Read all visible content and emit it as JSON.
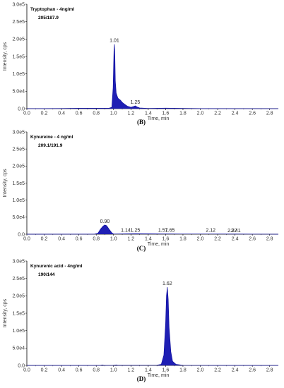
{
  "chart_data": [
    {
      "type": "area",
      "panel_label": "(B)",
      "title": "Tryptophan - 4ng/ml",
      "subtitle": "205/187.9",
      "xlabel": "Time, min",
      "ylabel": "Intensity, cps",
      "xlim": [
        0.0,
        2.9
      ],
      "ylim": [
        0,
        300000
      ],
      "x_ticks": [
        "0.0",
        "0.2",
        "0.4",
        "0.6",
        "0.8",
        "1.0",
        "1.2",
        "1.4",
        "1.6",
        "1.8",
        "2.0",
        "2.2",
        "2.4",
        "2.6",
        "2.8"
      ],
      "y_ticks": [
        "0.0",
        "5.0e4",
        "1.0e5",
        "1.5e5",
        "2.0e5",
        "2.5e5",
        "3.0e5"
      ],
      "series": [
        {
          "x": [
            0.0,
            0.4,
            0.6,
            0.95,
            0.98,
            0.995,
            1.005,
            1.01,
            1.015,
            1.02,
            1.03,
            1.05,
            1.08,
            1.1,
            1.13,
            1.16,
            1.2,
            1.23,
            1.25,
            1.27,
            1.3,
            1.4,
            1.6,
            2.0,
            2.9
          ],
          "y": [
            0,
            500,
            1200,
            1500,
            4000,
            60000,
            170000,
            185000,
            150000,
            80000,
            45000,
            30000,
            24000,
            18000,
            12000,
            7000,
            4000,
            6000,
            8000,
            5000,
            2000,
            800,
            1500,
            300,
            0
          ]
        }
      ],
      "peak_labels": [
        {
          "x": 1.01,
          "y": 185000,
          "label": "1.01"
        },
        {
          "x": 1.25,
          "y": 8000,
          "label": "1.25"
        }
      ]
    },
    {
      "type": "area",
      "panel_label": "(C)",
      "title": "Kynureine - 4 ng/ml",
      "subtitle": "209.1/191.9",
      "xlabel": "Time, min",
      "ylabel": "Intensity, cps",
      "xlim": [
        0.0,
        2.9
      ],
      "ylim": [
        0,
        300000
      ],
      "x_ticks": [
        "0.0",
        "0.2",
        "0.4",
        "0.6",
        "0.8",
        "1.0",
        "1.2",
        "1.4",
        "1.6",
        "1.8",
        "2.0",
        "2.2",
        "2.4",
        "2.6",
        "2.8"
      ],
      "y_ticks": [
        "0.0",
        "5.0e4",
        "1.0e5",
        "1.5e5",
        "2.0e5",
        "2.5e5",
        "3.0e5"
      ],
      "series": [
        {
          "x": [
            0.0,
            0.78,
            0.82,
            0.85,
            0.88,
            0.9,
            0.92,
            0.95,
            0.98,
            1.0,
            1.14,
            1.25,
            1.57,
            1.65,
            2.12,
            2.37,
            2.41,
            2.9
          ],
          "y": [
            0,
            300,
            3000,
            15000,
            24000,
            27000,
            25000,
            14000,
            4000,
            600,
            1200,
            1500,
            900,
            700,
            600,
            500,
            500,
            0
          ]
        }
      ],
      "peak_labels": [
        {
          "x": 0.9,
          "y": 27000,
          "label": "0.90"
        },
        {
          "x": 1.14,
          "y": 1200,
          "label": "1.14"
        },
        {
          "x": 1.25,
          "y": 1500,
          "label": "1.25"
        },
        {
          "x": 1.57,
          "y": 900,
          "label": "1.57"
        },
        {
          "x": 1.65,
          "y": 700,
          "label": "1.65"
        },
        {
          "x": 2.12,
          "y": 600,
          "label": "2.12"
        },
        {
          "x": 2.37,
          "y": 500,
          "label": "2.37"
        },
        {
          "x": 2.41,
          "y": 500,
          "label": "2.41"
        }
      ]
    },
    {
      "type": "area",
      "panel_label": "(D)",
      "title": "Kynurenic acid - 4ng/ml",
      "subtitle": "190/144",
      "xlabel": "Time, min",
      "ylabel": "Intensity, cps",
      "xlim": [
        0.0,
        2.9
      ],
      "ylim": [
        0,
        300000
      ],
      "x_ticks": [
        "0.0",
        "0.2",
        "0.4",
        "0.6",
        "0.8",
        "1.0",
        "1.2",
        "1.4",
        "1.6",
        "1.8",
        "2.0",
        "2.2",
        "2.4",
        "2.6",
        "2.8"
      ],
      "y_ticks": [
        "0.0",
        "5.0e4",
        "1.0e5",
        "1.5e5",
        "2.0e5",
        "2.5e5",
        "3.0e5"
      ],
      "series": [
        {
          "x": [
            0.0,
            0.85,
            0.87,
            0.89,
            1.0,
            1.03,
            1.05,
            1.5,
            1.55,
            1.58,
            1.6,
            1.61,
            1.62,
            1.63,
            1.64,
            1.66,
            1.68,
            1.72,
            1.8,
            2.9
          ],
          "y": [
            0,
            300,
            1500,
            300,
            500,
            1500,
            500,
            800,
            3000,
            30000,
            120000,
            200000,
            225000,
            190000,
            110000,
            40000,
            12000,
            3000,
            500,
            0
          ]
        }
      ],
      "peak_labels": [
        {
          "x": 1.62,
          "y": 225000,
          "label": "1.62"
        }
      ]
    }
  ],
  "colors": {
    "fill": "#1f1fb4",
    "stroke": "#1010a0",
    "axis": "#000000"
  }
}
